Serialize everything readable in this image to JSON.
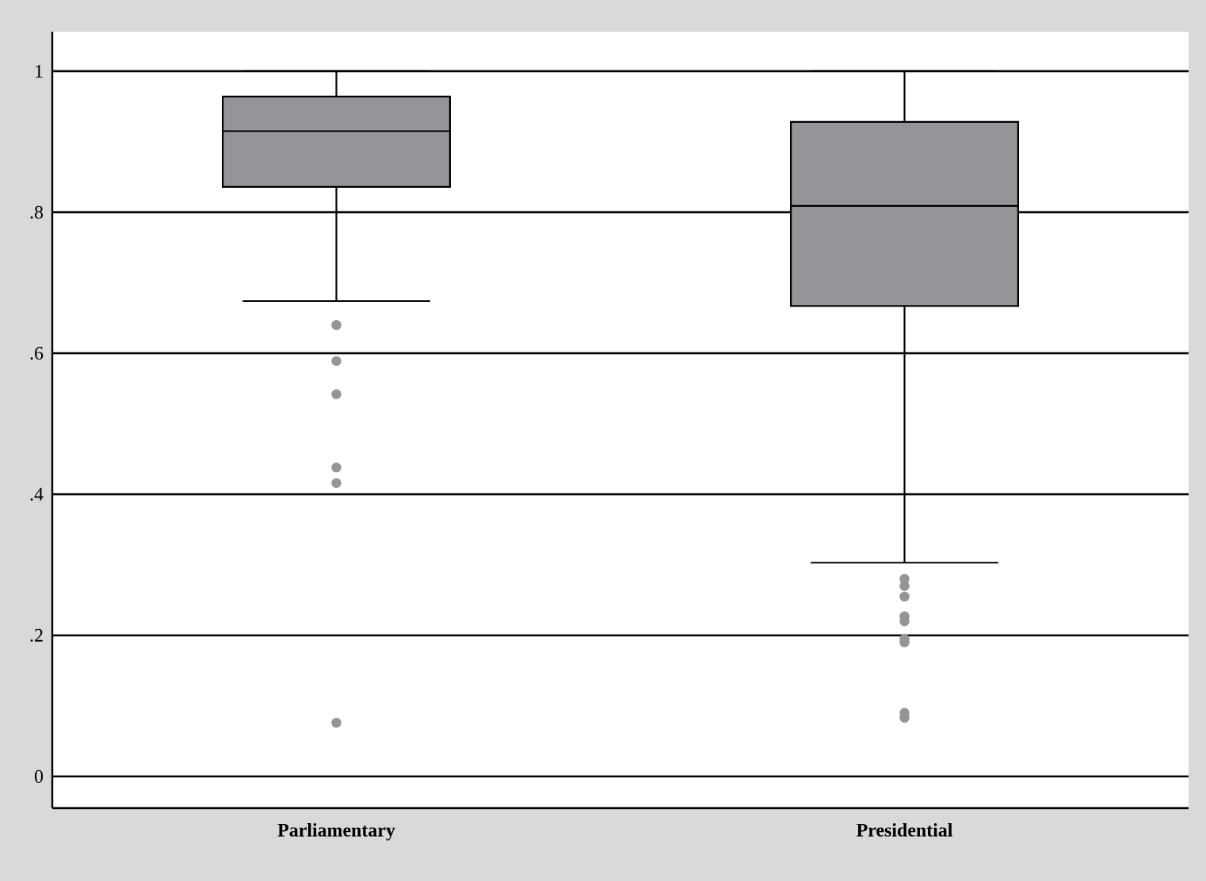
{
  "chart_data": {
    "type": "box",
    "categories": [
      "Parliamentary",
      "Presidential"
    ],
    "color": "#939598",
    "marker": "circle",
    "grid": "y",
    "boxes": [
      {
        "low": 0.674,
        "q1": 0.836,
        "median": 0.915,
        "q3": 0.964,
        "high": 1.0,
        "outliers": [
          0.64,
          0.589,
          0.542,
          0.438,
          0.416,
          0.076
        ]
      },
      {
        "low": 0.303,
        "q1": 0.667,
        "median": 0.809,
        "q3": 0.928,
        "high": 1.0,
        "outliers": [
          0.28,
          0.27,
          0.255,
          0.227,
          0.22,
          0.195,
          0.19,
          0.09,
          0.083
        ]
      }
    ],
    "ylim": [
      -0.045,
      1.056
    ],
    "yticks": [
      {
        "value": 0,
        "label": "0"
      },
      {
        "value": 0.2,
        "label": ".2"
      },
      {
        "value": 0.4,
        "label": ".4"
      },
      {
        "value": 0.6,
        "label": ".6"
      },
      {
        "value": 0.8,
        "label": ".8"
      },
      {
        "value": 1,
        "label": "1"
      }
    ]
  }
}
